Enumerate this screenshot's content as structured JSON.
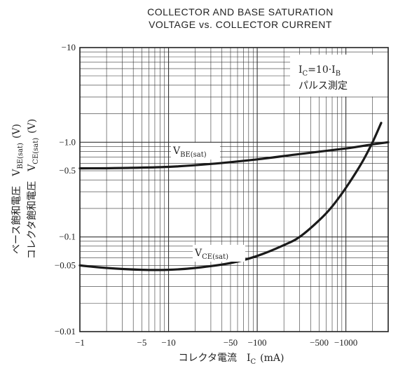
{
  "chart_data": {
    "type": "line",
    "title": "COLLECTOR AND BASE SATURATION",
    "subtitle": "VOLTAGE vs. COLLECTOR CURRENT",
    "xlabel": "コレクタ電流　I",
    "xlabel_sub": "C",
    "xlabel_unit": "(mA)",
    "ylabel_line1_prefix": "ベース飽和電圧　V",
    "ylabel_line1_sub": "BE(sat)",
    "ylabel_line1_unit": "(V)",
    "ylabel_line2_prefix": "コレクタ飽和電圧　V",
    "ylabel_line2_sub": "CE(sat)",
    "ylabel_line2_unit": "(V)",
    "x_scale": "log",
    "y_scale": "log",
    "xlim": [
      1,
      3000
    ],
    "ylim": [
      -0.01,
      -10
    ],
    "grid": true,
    "x_ticks": [
      {
        "value": 1,
        "label": "−1"
      },
      {
        "value": 5,
        "label": "−5"
      },
      {
        "value": 10,
        "label": "−10"
      },
      {
        "value": 50,
        "label": "−50"
      },
      {
        "value": 100,
        "label": "−100"
      },
      {
        "value": 500,
        "label": "−500"
      },
      {
        "value": 1000,
        "label": "−1000"
      }
    ],
    "y_ticks": [
      {
        "value": 0.01,
        "label": "−0.01"
      },
      {
        "value": 0.05,
        "label": "−0.05"
      },
      {
        "value": 0.1,
        "label": "−0.1"
      },
      {
        "value": 0.5,
        "label": "−0.5"
      },
      {
        "value": 1,
        "label": "−1.0"
      },
      {
        "value": 10,
        "label": "−10"
      }
    ],
    "condition_main": "I",
    "condition_sub1": "C",
    "condition_mid": "=10·I",
    "condition_sub2": "B",
    "condition_line2": "パルス測定",
    "series": [
      {
        "name": "V",
        "name_sub": "BE(sat)",
        "x": [
          -1,
          -3,
          -10,
          -30,
          -100,
          -300,
          -1000,
          -2000,
          -3000
        ],
        "y": [
          -0.53,
          -0.535,
          -0.55,
          -0.59,
          -0.66,
          -0.75,
          -0.86,
          -0.95,
          -1.0
        ]
      },
      {
        "name": "V",
        "name_sub": "CE(sat)",
        "x": [
          -1,
          -2,
          -5,
          -10,
          -20,
          -50,
          -100,
          -200,
          -300,
          -500,
          -700,
          -1000,
          -1500,
          -2000,
          -2500
        ],
        "y": [
          -0.05,
          -0.047,
          -0.045,
          -0.045,
          -0.047,
          -0.053,
          -0.063,
          -0.082,
          -0.1,
          -0.15,
          -0.21,
          -0.33,
          -0.6,
          -1.0,
          -1.6
        ]
      }
    ]
  }
}
